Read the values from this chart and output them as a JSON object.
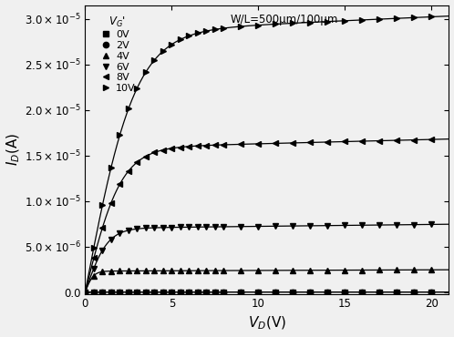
{
  "xlabel": "$V_D$(V)",
  "ylabel": "$I_D$(A)",
  "xlim": [
    0,
    21
  ],
  "ylim": [
    -2e-07,
    3.15e-05
  ],
  "legend_labels": [
    "0V",
    "2V",
    "4V",
    "6V",
    "8V",
    "10V"
  ],
  "markers": [
    "s",
    "o",
    "^",
    "v",
    "<",
    ">"
  ],
  "markersize": 4.5,
  "Isat_values": [
    2e-10,
    2e-10,
    2.3e-06,
    7e-06,
    1.58e-05,
    2.85e-05
  ],
  "vth_list": [
    5.0,
    5.0,
    2.8,
    2.8,
    2.8,
    2.8
  ],
  "sharp_list": [
    1.0,
    1.0,
    2.5,
    2.5,
    2.5,
    2.5
  ],
  "lam_list": [
    0.0,
    0.0,
    0.003,
    0.003,
    0.003,
    0.003
  ],
  "color": "black",
  "background_color": "#f0f0f0",
  "ytick_values": [
    0.0,
    5e-06,
    1e-05,
    1.5e-05,
    2e-05,
    2.5e-05,
    3e-05
  ],
  "xtick_values": [
    0,
    5,
    10,
    15,
    20
  ],
  "vg_list": [
    0,
    2,
    4,
    6,
    8,
    10
  ],
  "annotation_text": "W/L=500μm/100μm",
  "legend_title": "$V_{G}$'",
  "marker_vd": [
    0,
    0.5,
    1,
    1.5,
    2,
    2.5,
    3,
    3.5,
    4,
    4.5,
    5,
    5.5,
    6,
    6.5,
    7,
    7.5,
    8,
    9,
    10,
    11,
    12,
    13,
    14,
    15,
    16,
    17,
    18,
    19,
    20
  ]
}
